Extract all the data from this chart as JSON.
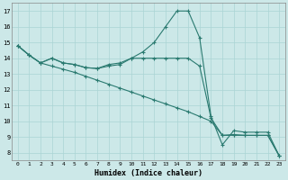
{
  "xlabel": "Humidex (Indice chaleur)",
  "bg_color": "#cce8e8",
  "grid_color": "#aad4d4",
  "line_color": "#2a7a70",
  "xlim": [
    -0.5,
    23.5
  ],
  "ylim": [
    7.5,
    17.5
  ],
  "xticks": [
    0,
    1,
    2,
    3,
    4,
    5,
    6,
    7,
    8,
    9,
    10,
    11,
    12,
    13,
    14,
    15,
    16,
    17,
    18,
    19,
    20,
    21,
    22,
    23
  ],
  "yticks": [
    8,
    9,
    10,
    11,
    12,
    13,
    14,
    15,
    16,
    17
  ],
  "x": [
    0,
    1,
    2,
    3,
    4,
    5,
    6,
    7,
    8,
    9,
    10,
    11,
    12,
    13,
    14,
    15,
    16,
    17,
    18,
    19,
    20,
    21,
    22,
    23
  ],
  "line1": [
    14.8,
    14.2,
    13.7,
    14.0,
    13.7,
    13.6,
    13.4,
    13.35,
    13.6,
    13.7,
    14.0,
    14.4,
    15.0,
    16.0,
    17.0,
    17.0,
    15.3,
    10.3,
    8.5,
    9.4,
    9.3,
    9.3,
    9.3,
    7.8
  ],
  "line2": [
    14.8,
    14.2,
    13.7,
    14.0,
    13.7,
    13.6,
    13.4,
    13.35,
    13.5,
    13.6,
    14.0,
    14.0,
    14.0,
    14.0,
    14.0,
    14.0,
    13.5,
    10.2,
    9.1,
    9.15,
    9.1,
    9.1,
    9.1,
    7.8
  ],
  "line3": [
    14.8,
    14.2,
    13.7,
    13.5,
    13.3,
    13.1,
    12.85,
    12.6,
    12.35,
    12.1,
    11.85,
    11.6,
    11.35,
    11.1,
    10.85,
    10.6,
    10.3,
    10.0,
    9.1,
    9.1,
    9.1,
    9.1,
    9.1,
    7.8
  ]
}
